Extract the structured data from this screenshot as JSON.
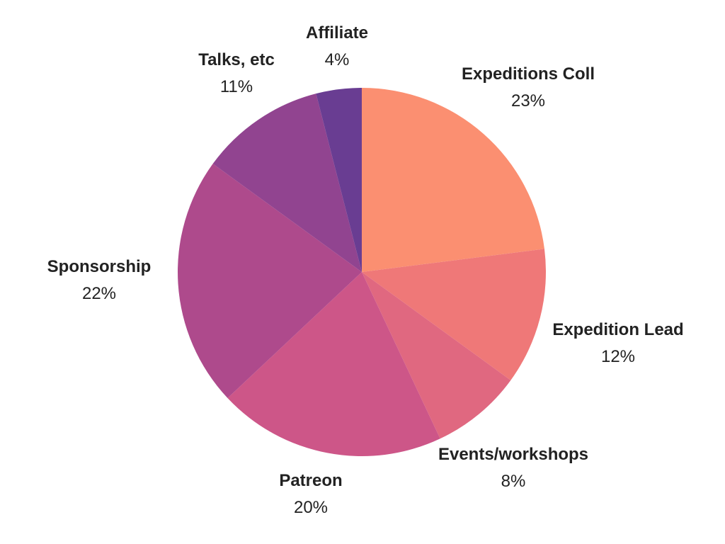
{
  "chart_data": {
    "type": "pie",
    "categories": [
      "Expeditions Coll",
      "Expedition Lead",
      "Events/workshops",
      "Patreon",
      "Sponsorship",
      "Talks, etc",
      "Affiliate"
    ],
    "values": [
      23,
      12,
      8,
      20,
      22,
      11,
      4
    ],
    "labels": [
      "23%",
      "12%",
      "8%",
      "20%",
      "22%",
      "11%",
      "4%"
    ],
    "colors": [
      "#fb8f71",
      "#ef7878",
      "#e06880",
      "#cd5688",
      "#ae4a8c",
      "#914490",
      "#693d92"
    ],
    "start_angle": "12 o'clock",
    "direction": "clockwise",
    "legend": "none"
  }
}
